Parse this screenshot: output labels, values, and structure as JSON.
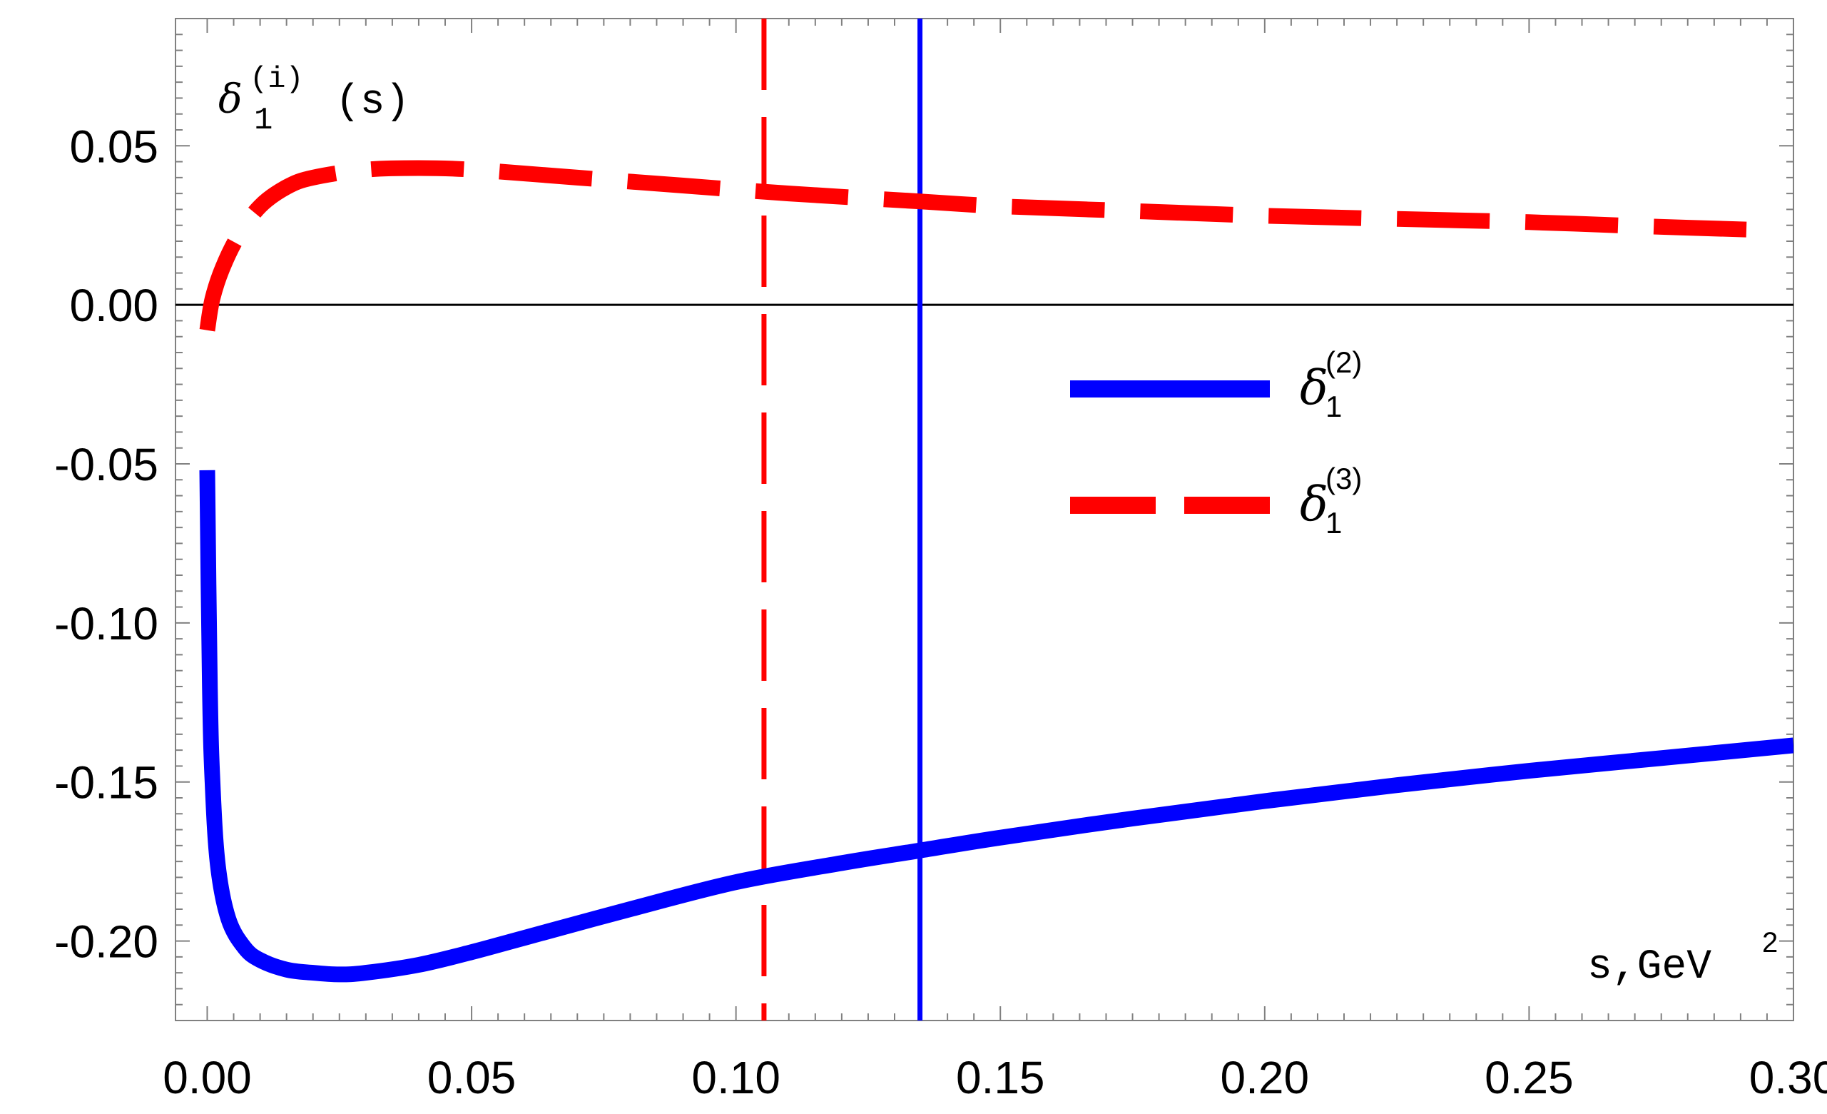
{
  "chart_data": {
    "type": "line",
    "title": "",
    "ylabel": {
      "symbol": "δ",
      "sub": "1",
      "sup": "(i)",
      "arg": "(s)"
    },
    "xlabel": {
      "text": "s,GeV",
      "sup": "2"
    },
    "xlim": [
      -0.006,
      0.3
    ],
    "ylim": [
      -0.225,
      0.09
    ],
    "xticks": [
      "0.00",
      "0.05",
      "0.10",
      "0.15",
      "0.20",
      "0.25",
      "0.30"
    ],
    "yticks": [
      "0.05",
      "0.00",
      "-0.05",
      "-0.10",
      "-0.15",
      "-0.20"
    ],
    "grid": false,
    "legend_position": "center-right",
    "zero_line": 0,
    "vlines": [
      {
        "x": 0.1053,
        "style": "dashed",
        "color": "#ff0000"
      },
      {
        "x": 0.1348,
        "style": "solid",
        "color": "#0000ff"
      }
    ],
    "series": [
      {
        "legend": {
          "symbol": "δ",
          "sub": "1",
          "sup": "(2)"
        },
        "color": "#0000ff",
        "style": "solid",
        "x": [
          0.0,
          0.0005,
          0.001,
          0.002,
          0.004,
          0.007,
          0.01,
          0.015,
          0.02,
          0.025,
          0.03,
          0.04,
          0.05,
          0.06,
          0.08,
          0.1,
          0.12,
          0.135,
          0.15,
          0.175,
          0.2,
          0.225,
          0.25,
          0.275,
          0.3
        ],
        "values": [
          -0.052,
          -0.12,
          -0.15,
          -0.176,
          -0.193,
          -0.202,
          -0.206,
          -0.209,
          -0.21,
          -0.2105,
          -0.21,
          -0.2075,
          -0.2035,
          -0.199,
          -0.19,
          -0.1815,
          -0.1755,
          -0.1715,
          -0.1675,
          -0.1615,
          -0.156,
          -0.151,
          -0.1465,
          -0.1425,
          -0.1385
        ]
      },
      {
        "legend": {
          "symbol": "δ",
          "sub": "1",
          "sup": "(3)"
        },
        "color": "#ff0000",
        "style": "dashed",
        "x": [
          0.0,
          0.001,
          0.003,
          0.006,
          0.01,
          0.015,
          0.02,
          0.03,
          0.04,
          0.05,
          0.07,
          0.09,
          0.11,
          0.135,
          0.15,
          0.175,
          0.2,
          0.225,
          0.25,
          0.275,
          0.295
        ],
        "values": [
          -0.008,
          0.002,
          0.012,
          0.022,
          0.031,
          0.037,
          0.04,
          0.0425,
          0.043,
          0.0425,
          0.04,
          0.0375,
          0.035,
          0.0325,
          0.031,
          0.0295,
          0.028,
          0.027,
          0.026,
          0.0245,
          0.0235
        ]
      }
    ]
  }
}
